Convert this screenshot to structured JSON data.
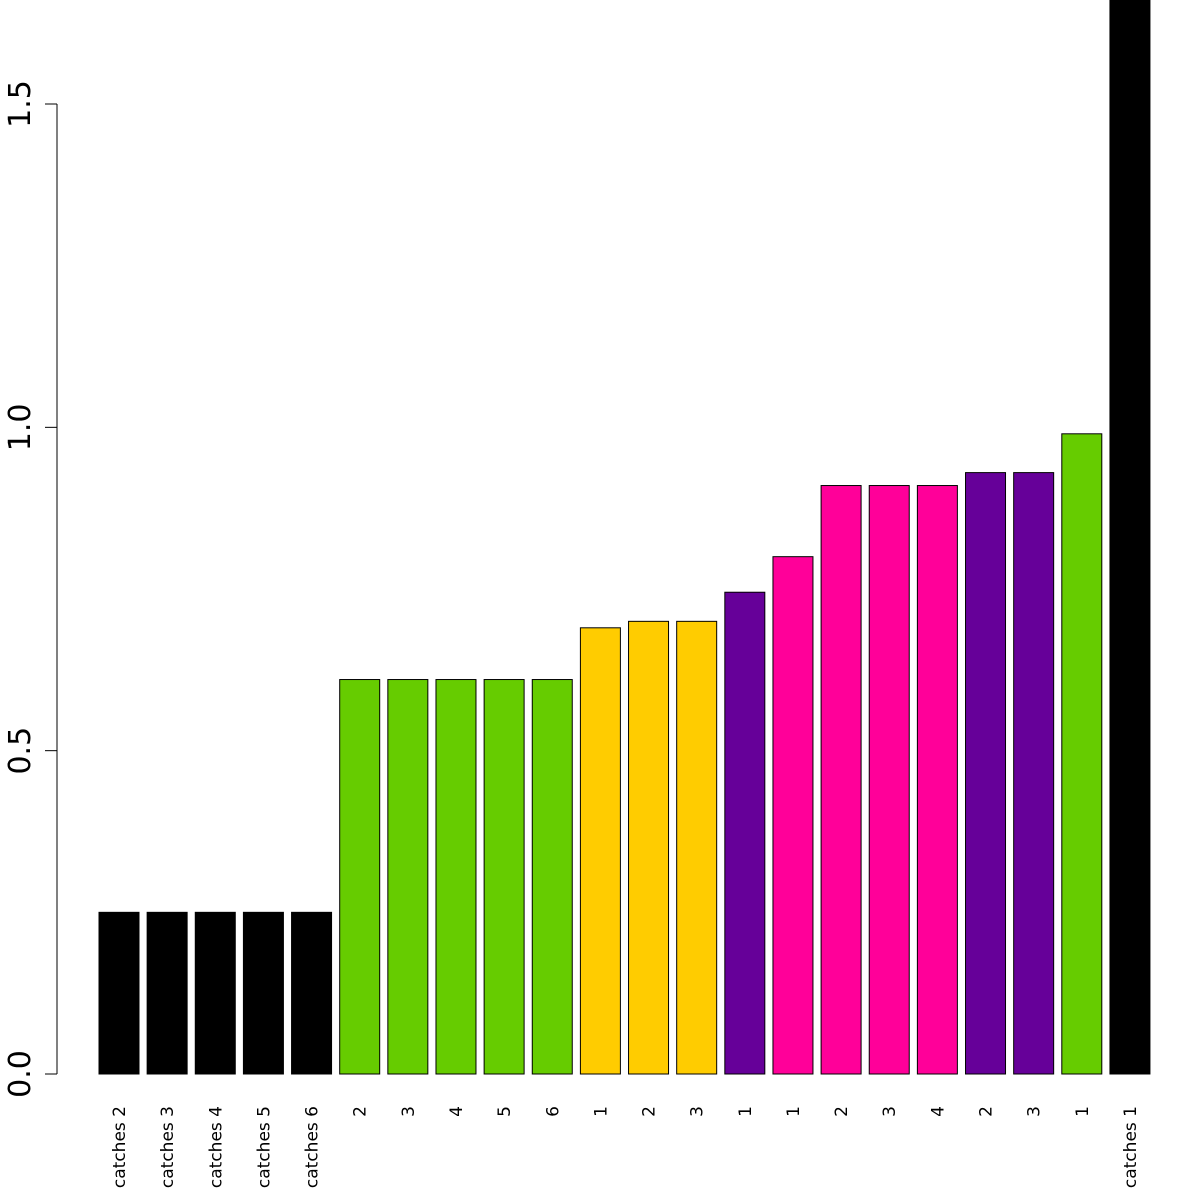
{
  "chart_data": {
    "type": "bar",
    "title": "",
    "xlabel": "",
    "ylabel": "",
    "ylim": [
      0,
      1.5
    ],
    "grid": false,
    "y_ticks": [
      0.0,
      0.5,
      1.0,
      1.5
    ],
    "y_tick_labels": [
      "0.0",
      "0.5",
      "1.0",
      "1.5"
    ],
    "categories": [
      "catches 2",
      "catches 3",
      "catches 4",
      "catches 5",
      "catches 6",
      "2",
      "3",
      "4",
      "5",
      "6",
      "1",
      "2",
      "3",
      "1",
      "1",
      "2",
      "3",
      "4",
      "2",
      "3",
      "1",
      "catches 1"
    ],
    "values": [
      0.25,
      0.25,
      0.25,
      0.25,
      0.25,
      0.61,
      0.61,
      0.61,
      0.61,
      0.61,
      0.69,
      0.7,
      0.7,
      0.745,
      0.8,
      0.91,
      0.91,
      0.91,
      0.93,
      0.93,
      0.99,
      1.68
    ],
    "colors": [
      "#000000",
      "#000000",
      "#000000",
      "#000000",
      "#000000",
      "#66CC00",
      "#66CC00",
      "#66CC00",
      "#66CC00",
      "#66CC00",
      "#FFCC00",
      "#FFCC00",
      "#FFCC00",
      "#660099",
      "#FF0099",
      "#FF0099",
      "#FF0099",
      "#FF0099",
      "#660099",
      "#660099",
      "#66CC00",
      "#000000"
    ]
  }
}
